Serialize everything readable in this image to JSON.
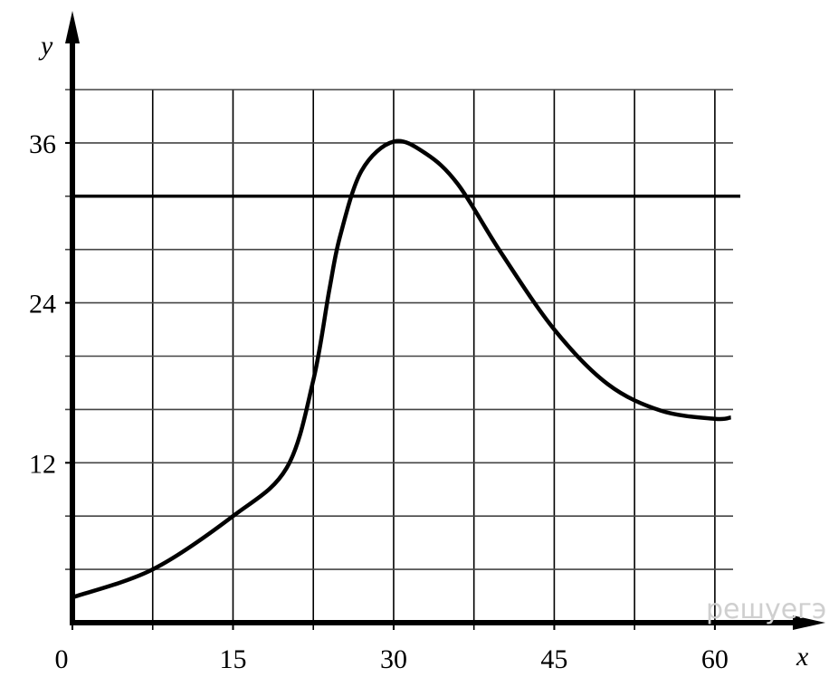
{
  "chart_data": {
    "type": "line",
    "x_label": "x",
    "y_label": "y",
    "x": [
      0,
      7.5,
      15,
      20,
      22.5,
      24,
      25,
      27,
      30,
      33,
      36,
      40,
      45,
      50,
      55,
      60,
      61.5
    ],
    "values": [
      1.9,
      4,
      8,
      11.6,
      18.2,
      25,
      29,
      33.9,
      36.1,
      35.2,
      32.9,
      27.8,
      22,
      17.9,
      15.9,
      15.3,
      15.4
    ],
    "color": "#000000",
    "xlim": [
      0,
      61.7
    ],
    "ylim": [
      0,
      40
    ],
    "xticks": [
      0,
      15,
      30,
      45,
      60
    ],
    "yticks": [
      12,
      24,
      36
    ],
    "xgrid": [
      7.5,
      15,
      22.5,
      30,
      37.5,
      45,
      52.5,
      60
    ],
    "ygrid": [
      4,
      8,
      12,
      16,
      20,
      24,
      28,
      32,
      36,
      40
    ],
    "hline": 32,
    "grid": true,
    "watermark": "решуегэ.рф"
  }
}
